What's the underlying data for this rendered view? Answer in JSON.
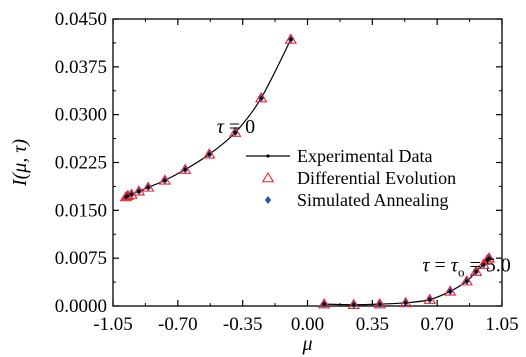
{
  "chart_data": {
    "type": "scatter",
    "xlabel": "μ",
    "ylabel": "I(μ, τ)",
    "xlim": [
      -1.05,
      1.05
    ],
    "ylim": [
      0,
      0.045
    ],
    "xticks": [
      "-1.05",
      "-0.70",
      "-0.35",
      "0.00",
      "0.35",
      "0.70",
      "1.05"
    ],
    "yticks": [
      "0.0000",
      "0.0075",
      "0.0150",
      "0.0225",
      "0.0300",
      "0.0375",
      "0.0450"
    ],
    "grid": false,
    "legend_position": "right",
    "annotations": [
      {
        "text": "τ = 0",
        "x": -0.49,
        "y": 0.0282
      },
      {
        "text": "τ = τ₀ = 5.0",
        "x": 0.62,
        "y": 0.0065
      }
    ],
    "series": [
      {
        "name": "Experimental Data",
        "marker": "line-dot",
        "color": "#000000",
        "curves": [
          {
            "x": [
              -0.98,
              -0.97,
              -0.95,
              -0.91,
              -0.86,
              -0.77,
              -0.66,
              -0.53,
              -0.39,
              -0.25,
              -0.09
            ],
            "y": [
              0.0171,
              0.0173,
              0.0175,
              0.018,
              0.0186,
              0.0197,
              0.0214,
              0.0238,
              0.0272,
              0.0326,
              0.0418
            ]
          },
          {
            "x": [
              0.09,
              0.25,
              0.39,
              0.53,
              0.66,
              0.77,
              0.86,
              0.91,
              0.95,
              0.97,
              0.98
            ],
            "y": [
              0.0003,
              0.0002,
              0.0003,
              0.0005,
              0.001,
              0.0023,
              0.0039,
              0.0054,
              0.0065,
              0.0072,
              0.0075
            ]
          }
        ]
      },
      {
        "name": "Differential Evolution",
        "marker": "triangle-open",
        "color": "#e8262e",
        "x": [
          -0.98,
          -0.97,
          -0.95,
          -0.91,
          -0.86,
          -0.77,
          -0.66,
          -0.53,
          -0.39,
          -0.25,
          -0.09,
          0.09,
          0.25,
          0.39,
          0.53,
          0.66,
          0.77,
          0.86,
          0.91,
          0.95,
          0.97,
          0.98
        ],
        "y": [
          0.0171,
          0.0173,
          0.0175,
          0.018,
          0.0186,
          0.0197,
          0.0214,
          0.0238,
          0.0272,
          0.0326,
          0.0418,
          0.0003,
          0.0002,
          0.0003,
          0.0005,
          0.001,
          0.0023,
          0.0039,
          0.0054,
          0.0065,
          0.0072,
          0.0075
        ]
      },
      {
        "name": "Simulated Annealing",
        "marker": "diamond-filled",
        "color": "#2f4fa8",
        "x": [
          -0.98,
          -0.97,
          -0.95,
          -0.91,
          -0.86,
          -0.77,
          -0.66,
          -0.53,
          -0.39,
          -0.25,
          -0.09,
          0.09,
          0.25,
          0.39,
          0.53,
          0.66,
          0.77,
          0.86,
          0.91,
          0.95,
          0.97,
          0.98
        ],
        "y": [
          0.0171,
          0.0173,
          0.0175,
          0.018,
          0.0186,
          0.0197,
          0.0214,
          0.0238,
          0.0272,
          0.0326,
          0.0418,
          0.0003,
          0.0002,
          0.0003,
          0.0005,
          0.001,
          0.0023,
          0.0039,
          0.0054,
          0.0065,
          0.0072,
          0.0075
        ]
      }
    ]
  }
}
